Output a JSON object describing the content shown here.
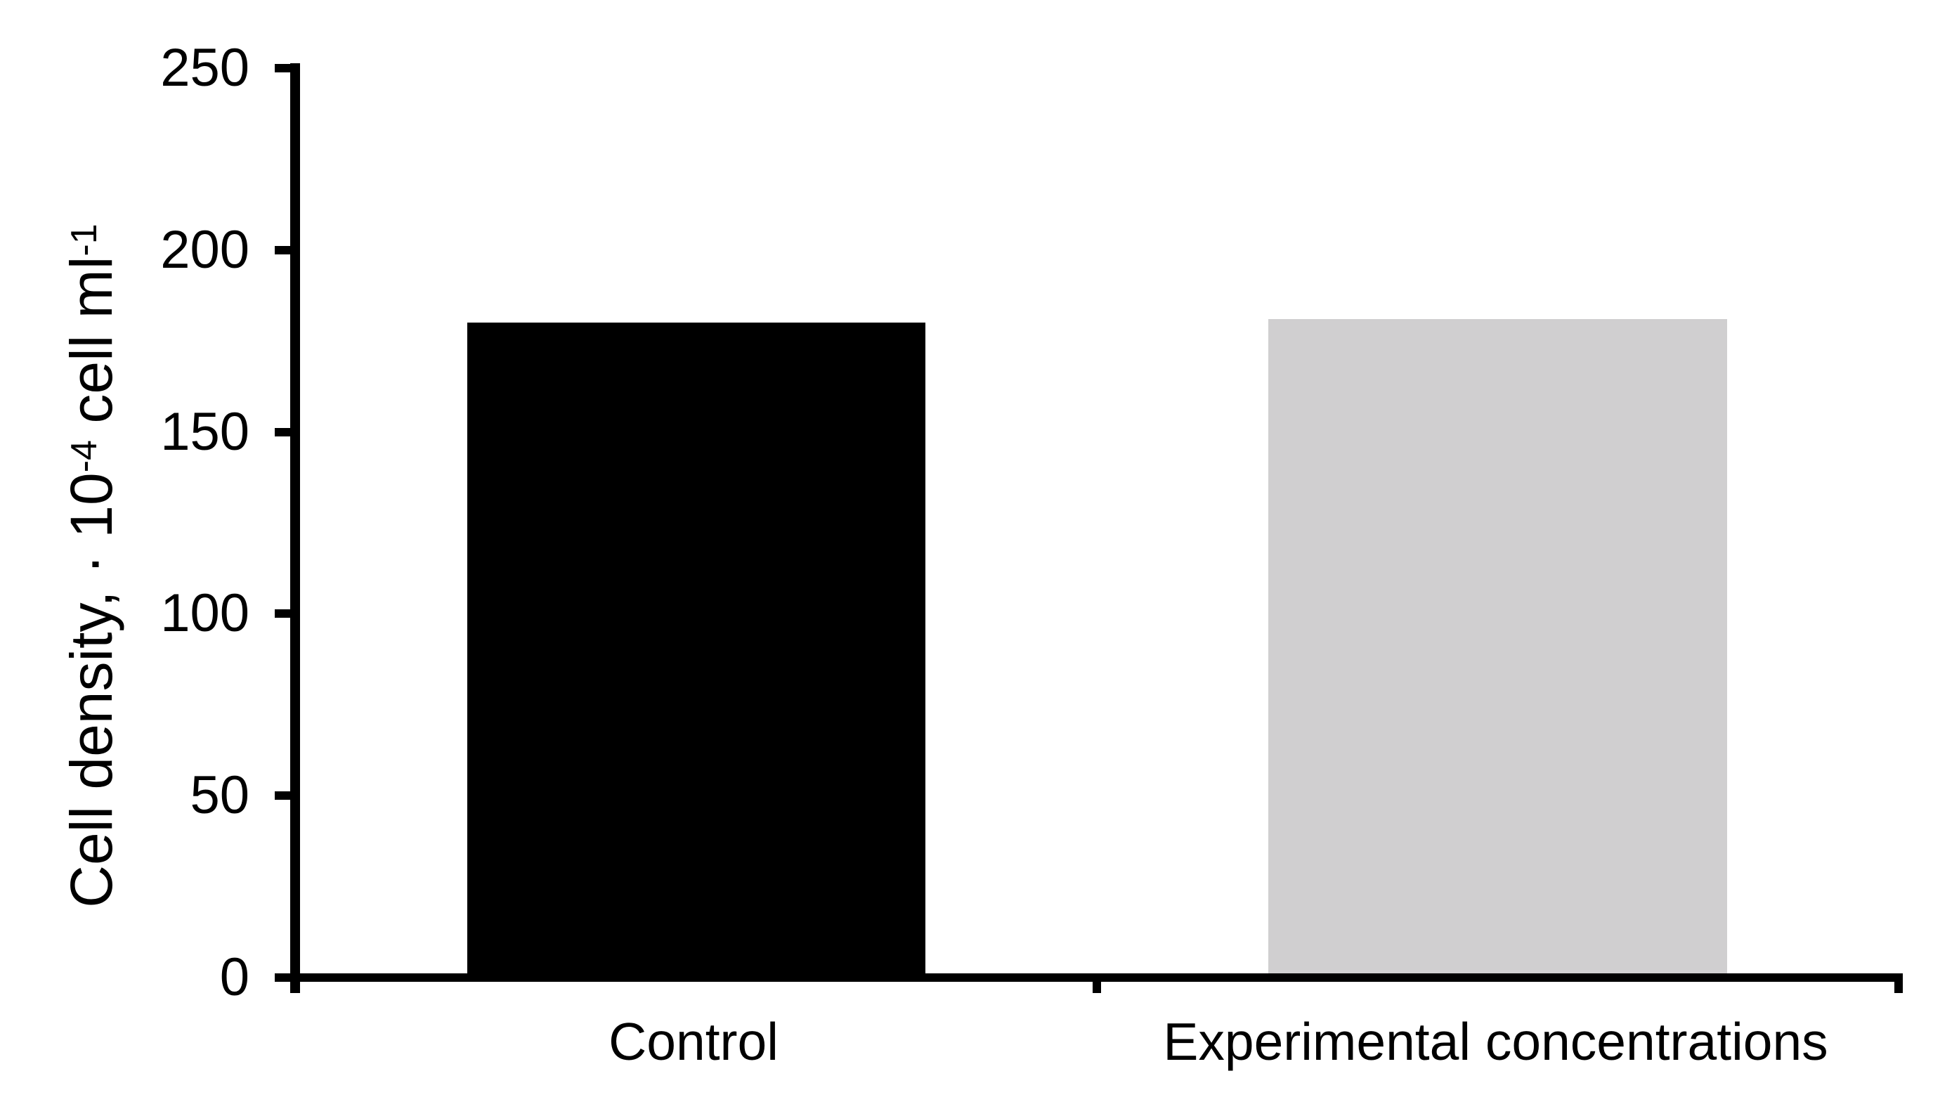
{
  "chart_data": {
    "type": "bar",
    "title": "",
    "categories": [
      "Control",
      "Experimental concentrations"
    ],
    "values": [
      180,
      181
    ],
    "bar_colors": [
      "#000000",
      "#d0cfd0"
    ],
    "ylabel": "Cell density, · 10^-4 cell ml^-1",
    "ylabel_parts": {
      "prefix": "Cell density, · 10",
      "sup1": "-4",
      "mid": " cell ml",
      "sup2": "-1"
    },
    "xlabel": "",
    "yticks": [
      0,
      50,
      100,
      150,
      200,
      250
    ],
    "ylim": [
      0,
      250
    ],
    "grid": false,
    "legend": "none",
    "background_color": "#ffffff",
    "axis_color": "#000000"
  }
}
